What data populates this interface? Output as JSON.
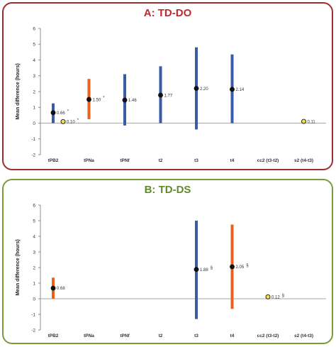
{
  "colors": {
    "blue": "#3a5ba8",
    "orange": "#e8621e",
    "black_point": "#111111",
    "yellow_point": "#f3e24a",
    "panel_a_border": "#9b2f2f",
    "panel_b_border": "#7a9a3a"
  },
  "chart_data": [
    {
      "type": "scatter",
      "title": "A: TD-DO",
      "ylabel": "Mean difference (hours)",
      "ylim": [
        -2,
        6
      ],
      "yticks": [
        "-2",
        "-1",
        "0",
        "1",
        "2",
        "3",
        "4",
        "5",
        "6"
      ],
      "categories": [
        "tPB2",
        "tPNa",
        "tPNf",
        "t2",
        "t3",
        "t4",
        "cc2 (t3-t2)",
        "s2 (t4-t3)"
      ],
      "intervals": [
        {
          "cat": "tPB2",
          "low": 0.0,
          "high": 1.25,
          "color": "blue"
        },
        {
          "cat": "tPNa",
          "low": 0.25,
          "high": 2.8,
          "color": "orange"
        },
        {
          "cat": "tPNf",
          "low": -0.15,
          "high": 3.1,
          "color": "blue"
        },
        {
          "cat": "t2",
          "low": 0.0,
          "high": 3.6,
          "color": "blue"
        },
        {
          "cat": "t3",
          "low": -0.4,
          "high": 4.8,
          "color": "blue"
        },
        {
          "cat": "t4",
          "low": 0.0,
          "high": 4.35,
          "color": "blue"
        }
      ],
      "points": [
        {
          "cat": "tPB2",
          "offset": 0,
          "y": 0.66,
          "label": "0.66",
          "mark": "*",
          "fill": "black"
        },
        {
          "cat": "tPB2",
          "offset": 1,
          "y": 0.1,
          "label": "0.10",
          "mark": "*",
          "fill": "yellow"
        },
        {
          "cat": "tPNa",
          "offset": 0,
          "y": 1.5,
          "label": "1.50",
          "mark": "*",
          "fill": "black"
        },
        {
          "cat": "tPNf",
          "offset": 0,
          "y": 1.46,
          "label": "1.46",
          "mark": "",
          "fill": "black"
        },
        {
          "cat": "t2",
          "offset": 0,
          "y": 1.77,
          "label": "1.77",
          "mark": "",
          "fill": "black"
        },
        {
          "cat": "t3",
          "offset": 0,
          "y": 2.2,
          "label": "2.20",
          "mark": "",
          "fill": "black"
        },
        {
          "cat": "t4",
          "offset": 0,
          "y": 2.14,
          "label": "2.14",
          "mark": "",
          "fill": "black"
        },
        {
          "cat": "s2 (t4-t3)",
          "offset": 0,
          "y": 0.11,
          "label": "0.11",
          "mark": "",
          "fill": "yellow"
        }
      ]
    },
    {
      "type": "scatter",
      "title": "B: TD-DS",
      "ylabel": "Mean difference (hours)",
      "ylim": [
        -2,
        6
      ],
      "yticks": [
        "-2",
        "-1",
        "0",
        "1",
        "2",
        "3",
        "4",
        "5",
        "6"
      ],
      "categories": [
        "tPB2",
        "tPNa",
        "tPNf",
        "t2",
        "t3",
        "t4",
        "cc2 (t3-t2)",
        "s2 (t4-t3)"
      ],
      "intervals": [
        {
          "cat": "tPB2",
          "low": 0.0,
          "high": 1.35,
          "color": "orange"
        },
        {
          "cat": "t3",
          "low": -1.3,
          "high": 5.0,
          "color": "blue"
        },
        {
          "cat": "t4",
          "low": -0.65,
          "high": 4.75,
          "color": "orange"
        }
      ],
      "points": [
        {
          "cat": "tPB2",
          "offset": 0,
          "y": 0.68,
          "label": "0.68",
          "mark": "",
          "fill": "black"
        },
        {
          "cat": "t3",
          "offset": 0,
          "y": 1.88,
          "label": "1.88",
          "mark": "§",
          "fill": "black"
        },
        {
          "cat": "t4",
          "offset": 0,
          "y": 2.05,
          "label": "2.05",
          "mark": "§",
          "fill": "black"
        },
        {
          "cat": "cc2 (t3-t2)",
          "offset": 0,
          "y": 0.12,
          "label": "0.12",
          "mark": "§",
          "fill": "yellow"
        }
      ]
    }
  ]
}
